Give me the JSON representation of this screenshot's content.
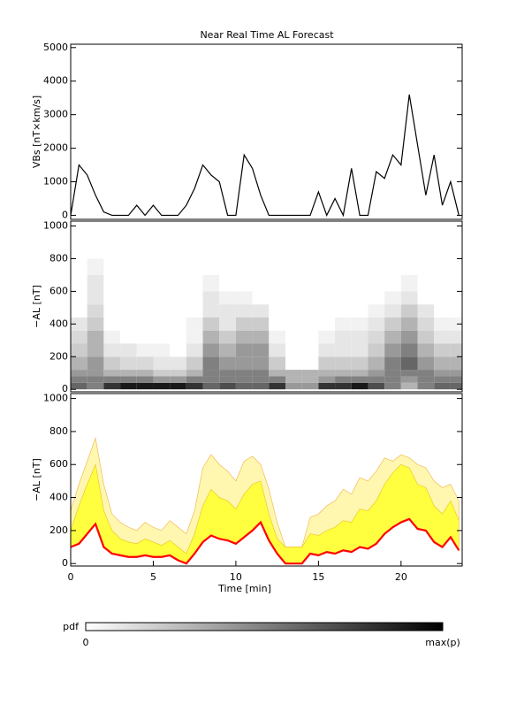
{
  "chart_data": [
    {
      "type": "line",
      "title": "Near Real Time AL Forecast",
      "ylabel": "VBs [nT×km/s]",
      "xlim": [
        0,
        23.7
      ],
      "ylim": [
        -120,
        5100
      ],
      "yticks": [
        0,
        1000,
        2000,
        3000,
        4000,
        5000
      ],
      "x": [
        0,
        0.5,
        1,
        1.5,
        2,
        2.5,
        3,
        3.5,
        4,
        4.5,
        5,
        5.5,
        6,
        6.5,
        7,
        7.5,
        8,
        8.5,
        9,
        9.5,
        10,
        10.5,
        11,
        11.5,
        12,
        12.5,
        13,
        13.5,
        14,
        14.5,
        15,
        15.5,
        16,
        16.5,
        17,
        17.5,
        18,
        18.5,
        19,
        19.5,
        20,
        20.5,
        21,
        21.5,
        22,
        22.5,
        23,
        23.5
      ],
      "series": [
        {
          "color": "#000000",
          "values": [
            0,
            1500,
            1200,
            600,
            100,
            0,
            0,
            0,
            300,
            0,
            300,
            0,
            0,
            0,
            300,
            800,
            1500,
            1200,
            1000,
            0,
            0,
            1800,
            1400,
            600,
            0,
            0,
            0,
            0,
            0,
            0,
            700,
            0,
            500,
            0,
            1400,
            0,
            0,
            1300,
            1100,
            1800,
            1500,
            3600,
            2100,
            600,
            1800,
            300,
            1000,
            0
          ]
        }
      ]
    },
    {
      "type": "heatmap",
      "ylabel": "−AL [nT]",
      "xlim": [
        0,
        23.7
      ],
      "ylim": [
        -15,
        1030
      ],
      "yticks": [
        0,
        200,
        400,
        600,
        800,
        1000
      ],
      "x_bins": [
        0,
        1,
        2,
        3,
        4,
        5,
        6,
        7,
        8,
        9,
        10,
        11,
        12,
        13,
        14,
        15,
        16,
        17,
        18,
        19,
        20,
        21,
        22,
        23,
        23.7
      ],
      "y_bins": [
        0,
        40,
        80,
        120,
        200,
        280,
        360,
        440,
        520,
        600,
        700,
        800
      ],
      "z": [
        [
          0.6,
          0.5,
          0.4,
          0.3,
          0.2,
          0.15,
          0.1,
          0,
          0,
          0,
          0
        ],
        [
          0.5,
          0.5,
          0.4,
          0.4,
          0.3,
          0.3,
          0.2,
          0.15,
          0.1,
          0.1,
          0.05
        ],
        [
          0.8,
          0.5,
          0.3,
          0.2,
          0.1,
          0.05,
          0,
          0,
          0,
          0,
          0
        ],
        [
          0.9,
          0.5,
          0.3,
          0.15,
          0.1,
          0,
          0,
          0,
          0,
          0,
          0
        ],
        [
          0.9,
          0.5,
          0.3,
          0.15,
          0.05,
          0,
          0,
          0,
          0,
          0,
          0
        ],
        [
          0.9,
          0.4,
          0.2,
          0.1,
          0.05,
          0,
          0,
          0,
          0,
          0,
          0
        ],
        [
          0.9,
          0.4,
          0.2,
          0.1,
          0,
          0,
          0,
          0,
          0,
          0,
          0
        ],
        [
          0.8,
          0.5,
          0.3,
          0.2,
          0.1,
          0.05,
          0.05,
          0,
          0,
          0,
          0
        ],
        [
          0.6,
          0.5,
          0.5,
          0.5,
          0.4,
          0.3,
          0.2,
          0.1,
          0.1,
          0.05,
          0
        ],
        [
          0.7,
          0.5,
          0.5,
          0.4,
          0.3,
          0.2,
          0.1,
          0.1,
          0.05,
          0,
          0
        ],
        [
          0.6,
          0.5,
          0.5,
          0.4,
          0.4,
          0.3,
          0.2,
          0.1,
          0.05,
          0,
          0
        ],
        [
          0.6,
          0.5,
          0.5,
          0.4,
          0.4,
          0.3,
          0.2,
          0.1,
          0,
          0,
          0
        ],
        [
          0.8,
          0.5,
          0.3,
          0.2,
          0.1,
          0.05,
          0,
          0,
          0,
          0,
          0
        ],
        [
          0.4,
          0.3,
          0.3,
          0,
          0,
          0,
          0,
          0,
          0,
          0,
          0
        ],
        [
          0.4,
          0.3,
          0.3,
          0,
          0,
          0,
          0,
          0,
          0,
          0,
          0
        ],
        [
          0.8,
          0.4,
          0.3,
          0.2,
          0.1,
          0.05,
          0,
          0,
          0,
          0,
          0
        ],
        [
          0.8,
          0.5,
          0.3,
          0.2,
          0.1,
          0.1,
          0.05,
          0,
          0,
          0,
          0
        ],
        [
          0.9,
          0.5,
          0.3,
          0.2,
          0.1,
          0.1,
          0.05,
          0,
          0,
          0,
          0
        ],
        [
          0.7,
          0.5,
          0.4,
          0.3,
          0.2,
          0.15,
          0.1,
          0.05,
          0,
          0,
          0
        ],
        [
          0.5,
          0.5,
          0.5,
          0.5,
          0.4,
          0.3,
          0.2,
          0.1,
          0.05,
          0,
          0
        ],
        [
          0.3,
          0.4,
          0.5,
          0.6,
          0.5,
          0.4,
          0.3,
          0.2,
          0.1,
          0.05,
          0
        ],
        [
          0.5,
          0.5,
          0.5,
          0.4,
          0.3,
          0.2,
          0.15,
          0.1,
          0,
          0,
          0
        ],
        [
          0.6,
          0.5,
          0.4,
          0.3,
          0.2,
          0.1,
          0.05,
          0,
          0,
          0,
          0
        ],
        [
          0.6,
          0.5,
          0.4,
          0.3,
          0.2,
          0.1,
          0.05,
          0,
          0,
          0,
          0
        ]
      ]
    },
    {
      "type": "band",
      "ylabel": "−AL [nT]",
      "xlabel": "Time [min]",
      "xlim": [
        0,
        23.7
      ],
      "ylim": [
        -15,
        1030
      ],
      "yticks": [
        0,
        200,
        400,
        600,
        800,
        1000
      ],
      "xticks": [
        0,
        5,
        10,
        15,
        20
      ],
      "x": [
        0,
        0.5,
        1,
        1.5,
        2,
        2.5,
        3,
        3.5,
        4,
        4.5,
        5,
        5.5,
        6,
        6.5,
        7,
        7.5,
        8,
        8.5,
        9,
        9.5,
        10,
        10.5,
        11,
        11.5,
        12,
        12.5,
        13,
        13.5,
        14,
        14.5,
        15,
        15.5,
        16,
        16.5,
        17,
        17.5,
        18,
        18.5,
        19,
        19.5,
        20,
        20.5,
        21,
        21.5,
        22,
        22.5,
        23,
        23.5
      ],
      "series": [
        {
          "color": "#fff7b0",
          "values": [
            320,
            480,
            620,
            760,
            480,
            300,
            250,
            220,
            200,
            250,
            220,
            200,
            260,
            220,
            180,
            320,
            580,
            660,
            600,
            560,
            500,
            620,
            650,
            600,
            450,
            250,
            100,
            100,
            100,
            280,
            300,
            350,
            380,
            450,
            420,
            520,
            500,
            560,
            640,
            620,
            660,
            640,
            600,
            580,
            500,
            460,
            480,
            380
          ]
        },
        {
          "color": "#ffff40",
          "values": [
            200,
            350,
            480,
            600,
            320,
            200,
            150,
            130,
            120,
            150,
            130,
            110,
            140,
            100,
            60,
            180,
            350,
            450,
            400,
            380,
            330,
            420,
            480,
            500,
            300,
            150,
            100,
            100,
            100,
            180,
            170,
            200,
            220,
            260,
            250,
            330,
            320,
            380,
            480,
            550,
            600,
            580,
            480,
            460,
            350,
            300,
            380,
            260
          ]
        },
        {
          "color": "#ff0000",
          "values": [
            100,
            120,
            180,
            240,
            100,
            60,
            50,
            40,
            40,
            50,
            40,
            40,
            50,
            20,
            0,
            60,
            130,
            170,
            150,
            140,
            120,
            160,
            200,
            250,
            140,
            60,
            0,
            0,
            0,
            60,
            50,
            70,
            60,
            80,
            70,
            100,
            90,
            120,
            180,
            220,
            250,
            270,
            210,
            200,
            130,
            100,
            160,
            80
          ]
        }
      ]
    },
    {
      "type": "colorbar",
      "label": "pdf",
      "min_label": "0",
      "max_label": "max(p)"
    }
  ]
}
